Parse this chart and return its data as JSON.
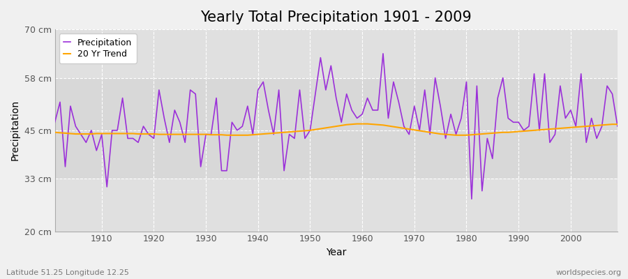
{
  "title": "Yearly Total Precipitation 1901 - 2009",
  "xlabel": "Year",
  "ylabel": "Precipitation",
  "footnote_left": "Latitude 51.25 Longitude 12.25",
  "footnote_right": "worldspecies.org",
  "years": [
    1901,
    1902,
    1903,
    1904,
    1905,
    1906,
    1907,
    1908,
    1909,
    1910,
    1911,
    1912,
    1913,
    1914,
    1915,
    1916,
    1917,
    1918,
    1919,
    1920,
    1921,
    1922,
    1923,
    1924,
    1925,
    1926,
    1927,
    1928,
    1929,
    1930,
    1931,
    1932,
    1933,
    1934,
    1935,
    1936,
    1937,
    1938,
    1939,
    1940,
    1941,
    1942,
    1943,
    1944,
    1945,
    1946,
    1947,
    1948,
    1949,
    1950,
    1951,
    1952,
    1953,
    1954,
    1955,
    1956,
    1957,
    1958,
    1959,
    1960,
    1961,
    1962,
    1963,
    1964,
    1965,
    1966,
    1967,
    1968,
    1969,
    1970,
    1971,
    1972,
    1973,
    1974,
    1975,
    1976,
    1977,
    1978,
    1979,
    1980,
    1981,
    1982,
    1983,
    1984,
    1985,
    1986,
    1987,
    1988,
    1989,
    1990,
    1991,
    1992,
    1993,
    1994,
    1995,
    1996,
    1997,
    1998,
    1999,
    2000,
    2001,
    2002,
    2003,
    2004,
    2005,
    2006,
    2007,
    2008,
    2009
  ],
  "precipitation": [
    47,
    52,
    36,
    51,
    46,
    44,
    42,
    45,
    40,
    44,
    31,
    45,
    45,
    53,
    43,
    43,
    42,
    46,
    44,
    43,
    55,
    48,
    42,
    50,
    47,
    42,
    55,
    54,
    36,
    44,
    44,
    53,
    35,
    35,
    47,
    45,
    46,
    51,
    44,
    55,
    57,
    50,
    44,
    55,
    35,
    44,
    43,
    55,
    43,
    45,
    54,
    63,
    55,
    61,
    53,
    47,
    54,
    50,
    48,
    49,
    53,
    50,
    50,
    64,
    48,
    57,
    52,
    46,
    44,
    51,
    45,
    55,
    44,
    58,
    51,
    43,
    49,
    44,
    48,
    57,
    28,
    56,
    30,
    43,
    38,
    53,
    58,
    48,
    47,
    47,
    45,
    46,
    59,
    45,
    59,
    42,
    44,
    56,
    48,
    50,
    46,
    59,
    42,
    48,
    43,
    46,
    56,
    54,
    46
  ],
  "trend": [
    44.5,
    44.4,
    44.3,
    44.2,
    44.1,
    44.1,
    44.1,
    44.1,
    44.2,
    44.2,
    44.2,
    44.2,
    44.2,
    44.2,
    44.2,
    44.2,
    44.1,
    44.1,
    44.1,
    44.1,
    44.0,
    44.0,
    44.0,
    44.0,
    44.0,
    44.0,
    44.0,
    44.0,
    44.0,
    44.0,
    43.9,
    43.9,
    43.9,
    43.8,
    43.8,
    43.8,
    43.8,
    43.8,
    43.9,
    44.0,
    44.1,
    44.2,
    44.3,
    44.4,
    44.5,
    44.6,
    44.7,
    44.8,
    44.9,
    45.0,
    45.2,
    45.4,
    45.6,
    45.8,
    46.0,
    46.2,
    46.4,
    46.5,
    46.6,
    46.6,
    46.6,
    46.5,
    46.4,
    46.3,
    46.1,
    45.9,
    45.7,
    45.5,
    45.3,
    45.1,
    44.9,
    44.7,
    44.5,
    44.3,
    44.1,
    44.0,
    43.9,
    43.8,
    43.8,
    43.8,
    43.9,
    44.0,
    44.1,
    44.2,
    44.3,
    44.4,
    44.5,
    44.5,
    44.6,
    44.7,
    44.8,
    44.9,
    45.0,
    45.1,
    45.2,
    45.3,
    45.4,
    45.5,
    45.6,
    45.7,
    45.8,
    45.9,
    46.0,
    46.1,
    46.2,
    46.3,
    46.4,
    46.5,
    46.5
  ],
  "precip_color": "#9b30d9",
  "trend_color": "#FFA500",
  "fig_bg_color": "#f0f0f0",
  "plot_bg_color": "#e0e0e0",
  "band_color": "#d8d8d8",
  "grid_color": "#ffffff",
  "ylim": [
    20,
    70
  ],
  "yticks": [
    20,
    33,
    45,
    58,
    70
  ],
  "ytick_labels": [
    "20 cm",
    "33 cm",
    "45 cm",
    "58 cm",
    "70 cm"
  ],
  "xlim": [
    1901,
    2009
  ],
  "xticks": [
    1910,
    1920,
    1930,
    1940,
    1950,
    1960,
    1970,
    1980,
    1990,
    2000
  ],
  "title_fontsize": 15,
  "label_fontsize": 10,
  "tick_fontsize": 9,
  "footnote_fontsize": 8,
  "band_ymin": 33,
  "band_ymax": 58
}
